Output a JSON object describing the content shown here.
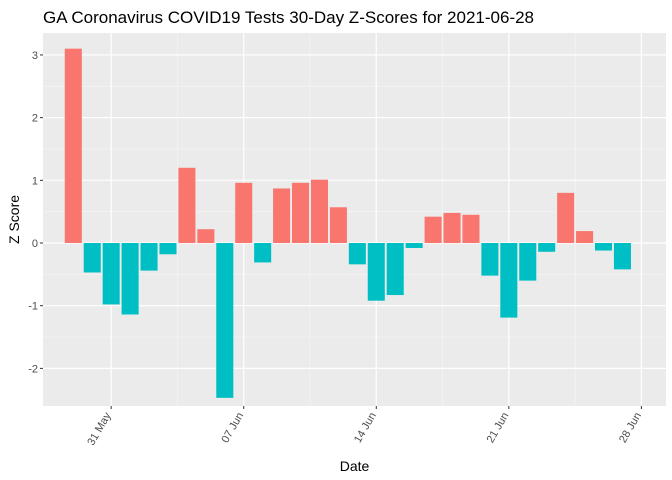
{
  "chart_data": {
    "type": "bar",
    "title": "GA Coronavirus COVID19 Tests 30-Day Z-Scores for 2021-06-28",
    "xlabel": "Date",
    "ylabel": "Z Score",
    "ylim": [
      -2.6,
      3.35
    ],
    "yticks": [
      -2,
      -1,
      0,
      1,
      2,
      3
    ],
    "ytick_labels": [
      "-2",
      "-1",
      "0",
      "1",
      "2",
      "3"
    ],
    "xticks": [
      {
        "day": 2,
        "label": "31 May"
      },
      {
        "day": 9,
        "label": "07 Jun"
      },
      {
        "day": 16,
        "label": "14 Jun"
      },
      {
        "day": 23,
        "label": "21 Jun"
      },
      {
        "day": 30,
        "label": "28 Jun"
      }
    ],
    "x_range_days": [
      -1.6,
      31.3
    ],
    "dates": [
      "2021-05-29",
      "2021-05-30",
      "2021-05-31",
      "2021-06-01",
      "2021-06-02",
      "2021-06-03",
      "2021-06-04",
      "2021-06-05",
      "2021-06-06",
      "2021-06-07",
      "2021-06-08",
      "2021-06-09",
      "2021-06-10",
      "2021-06-11",
      "2021-06-12",
      "2021-06-13",
      "2021-06-14",
      "2021-06-15",
      "2021-06-16",
      "2021-06-17",
      "2021-06-18",
      "2021-06-19",
      "2021-06-20",
      "2021-06-21",
      "2021-06-22",
      "2021-06-23",
      "2021-06-24",
      "2021-06-25",
      "2021-06-26",
      "2021-06-27",
      "2021-06-28"
    ],
    "values": [
      3.1,
      -0.47,
      -0.98,
      -1.14,
      -0.44,
      -0.18,
      1.2,
      0.22,
      -2.47,
      0.96,
      -0.31,
      0.87,
      0.96,
      1.01,
      0.57,
      -0.34,
      -0.92,
      -0.83,
      -0.08,
      0.42,
      0.48,
      0.45,
      -0.52,
      -1.19,
      -0.6,
      -0.14,
      0.8,
      0.19,
      -0.12,
      -0.42,
      null
    ],
    "colors": {
      "positive": "#F8766D",
      "negative": "#00BFC4",
      "panel": "#EBEBEB",
      "grid_major": "#FFFFFF",
      "grid_minor": "#F5F5F5"
    }
  }
}
